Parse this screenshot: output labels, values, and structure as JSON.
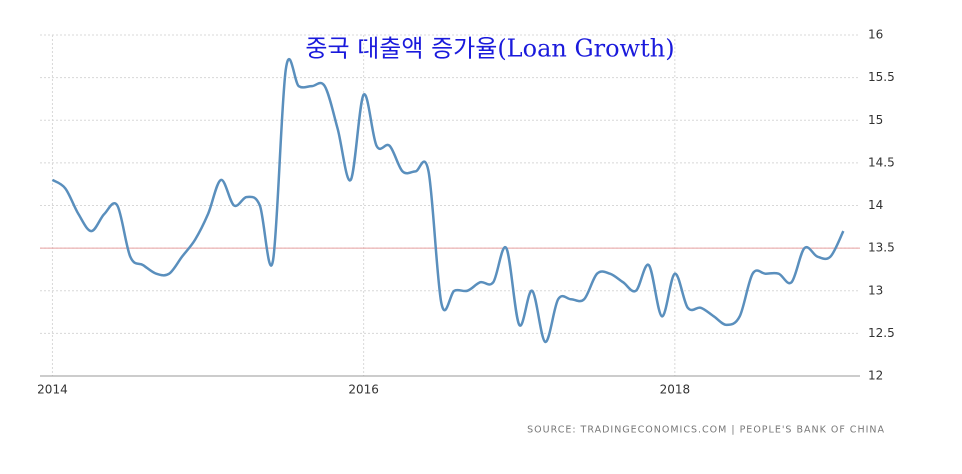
{
  "chart_data": {
    "type": "line",
    "title": "중국 대출액 증가율(Loan Growth)",
    "source": "SOURCE: TRADINGECONOMICS.COM | PEOPLE'S BANK OF CHINA",
    "x": [
      2014,
      2014.083,
      2014.167,
      2014.25,
      2014.333,
      2014.417,
      2014.5,
      2014.583,
      2014.667,
      2014.75,
      2014.833,
      2014.917,
      2015,
      2015.083,
      2015.167,
      2015.25,
      2015.333,
      2015.417,
      2015.5,
      2015.583,
      2015.667,
      2015.75,
      2015.833,
      2015.917,
      2016,
      2016.083,
      2016.167,
      2016.25,
      2016.333,
      2016.417,
      2016.5,
      2016.583,
      2016.667,
      2016.75,
      2016.833,
      2016.917,
      2017,
      2017.083,
      2017.167,
      2017.25,
      2017.333,
      2017.417,
      2017.5,
      2017.583,
      2017.667,
      2017.75,
      2017.833,
      2017.917,
      2018,
      2018.083,
      2018.167,
      2018.25,
      2018.333,
      2018.417,
      2018.5,
      2018.583,
      2018.667,
      2018.75,
      2018.833,
      2018.917,
      2019,
      2019.083
    ],
    "series": [
      {
        "color": "#5a8fbd",
        "values": [
          14.3,
          14.2,
          13.9,
          13.7,
          13.9,
          14.0,
          13.4,
          13.3,
          13.2,
          13.2,
          13.4,
          13.6,
          13.9,
          14.3,
          14.0,
          14.1,
          14.0,
          13.35,
          15.6,
          15.4,
          15.4,
          15.4,
          14.9,
          14.3,
          15.3,
          14.7,
          14.7,
          14.4,
          14.4,
          14.4,
          12.85,
          13.0,
          13.0,
          13.1,
          13.1,
          13.5,
          12.6,
          13.0,
          12.4,
          12.9,
          12.9,
          12.9,
          13.2,
          13.2,
          13.1,
          13.0,
          13.3,
          12.7,
          13.2,
          12.8,
          12.8,
          12.7,
          12.6,
          12.7,
          13.2,
          13.2,
          13.2,
          13.1,
          13.5,
          13.4,
          13.4,
          13.7
        ]
      }
    ],
    "reference_line": {
      "value": 13.5,
      "color": "#e8a0a0"
    },
    "xlim": [
      2013.92,
      2019.19
    ],
    "xticks": [
      2014,
      2016,
      2018
    ],
    "ylim": [
      12,
      16
    ],
    "yticks": [
      12,
      12.5,
      13,
      13.5,
      14,
      14.5,
      15,
      15.5,
      16
    ],
    "grid": true
  }
}
